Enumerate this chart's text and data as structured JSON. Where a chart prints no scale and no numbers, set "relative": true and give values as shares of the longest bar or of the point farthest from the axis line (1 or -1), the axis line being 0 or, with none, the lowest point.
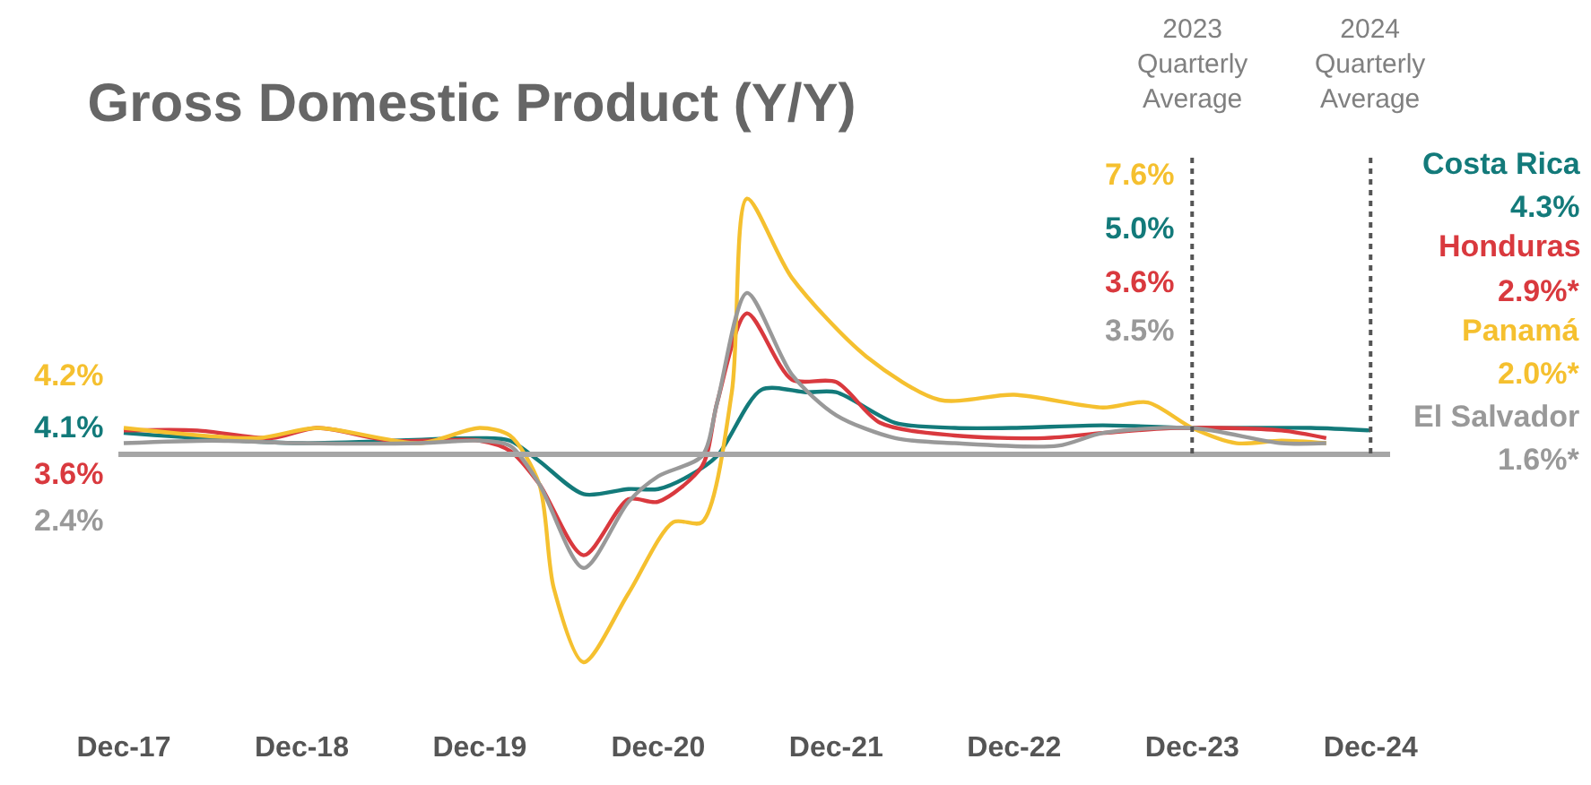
{
  "chart_data": {
    "type": "line",
    "title": "Gross Domestic Product (Y/Y)",
    "relative": true,
    "legend": false,
    "xlim": [
      "2017-11-20",
      "2025-01-10"
    ],
    "xticks": [
      {
        "value": "2017-12",
        "label": "Dec-17"
      },
      {
        "value": "2018-12",
        "label": "Dec-18"
      },
      {
        "value": "2019-12",
        "label": "Dec-19"
      },
      {
        "value": "2020-12",
        "label": "Dec-20"
      },
      {
        "value": "2021-12",
        "label": "Dec-21"
      },
      {
        "value": "2022-12",
        "label": "Dec-22"
      },
      {
        "value": "2023-12",
        "label": "Dec-23"
      },
      {
        "value": "2024-12",
        "label": "Dec-24"
      }
    ],
    "series": [
      {
        "name": "Costa Rica",
        "color": "#137a7a",
        "x": [
          "2017-12",
          "2018-12",
          "2019-12",
          "2020-02",
          "2020-04",
          "2020-07",
          "2020-10",
          "2020-12",
          "2021-02",
          "2021-04",
          "2021-07",
          "2021-10",
          "2021-12",
          "2022-04",
          "2022-08",
          "2022-12",
          "2023-06",
          "2023-12",
          "2024-08",
          "2024-12"
        ],
        "values": [
          0.08,
          0.04,
          0.06,
          0.05,
          -0.03,
          -0.16,
          -0.14,
          -0.14,
          -0.09,
          -0.01,
          0.25,
          0.24,
          0.24,
          0.12,
          0.1,
          0.1,
          0.11,
          0.1,
          0.1,
          0.09
        ]
      },
      {
        "name": "Honduras",
        "color": "#d9393e",
        "x": [
          "2017-12",
          "2018-05",
          "2018-10",
          "2019-01",
          "2019-06",
          "2019-12",
          "2020-02",
          "2020-04",
          "2020-07",
          "2020-10",
          "2020-12",
          "2021-03",
          "2021-04",
          "2021-06",
          "2021-09",
          "2021-12",
          "2022-03",
          "2022-08",
          "2023-02",
          "2023-06",
          "2023-11",
          "2024-06",
          "2024-09"
        ],
        "values": [
          0.09,
          0.09,
          0.06,
          0.1,
          0.05,
          0.05,
          0.01,
          -0.12,
          -0.4,
          -0.18,
          -0.19,
          -0.05,
          0.2,
          0.55,
          0.29,
          0.28,
          0.12,
          0.07,
          0.06,
          0.08,
          0.1,
          0.09,
          0.06
        ]
      },
      {
        "name": "Panamá",
        "color": "#f5c02f",
        "x": [
          "2017-12",
          "2018-09",
          "2019-01",
          "2019-08",
          "2019-12",
          "2020-02",
          "2020-04",
          "2020-05",
          "2020-07",
          "2020-10",
          "2021-01",
          "2021-03",
          "2021-05",
          "2021-06",
          "2021-09",
          "2022-02",
          "2022-07",
          "2022-12",
          "2023-06",
          "2023-09",
          "2023-12",
          "2024-03",
          "2024-06",
          "2024-09"
        ],
        "values": [
          0.1,
          0.06,
          0.1,
          0.04,
          0.1,
          0.07,
          -0.12,
          -0.53,
          -0.82,
          -0.55,
          -0.27,
          -0.27,
          0.24,
          1.0,
          0.69,
          0.38,
          0.21,
          0.23,
          0.18,
          0.2,
          0.1,
          0.04,
          0.05,
          0.04
        ]
      },
      {
        "name": "El Salvador",
        "color": "#999999",
        "x": [
          "2017-12",
          "2018-06",
          "2018-12",
          "2019-08",
          "2019-12",
          "2020-02",
          "2020-04",
          "2020-07",
          "2020-10",
          "2020-12",
          "2021-03",
          "2021-04",
          "2021-06",
          "2021-09",
          "2021-12",
          "2022-04",
          "2022-08",
          "2023-03",
          "2023-06",
          "2023-12",
          "2024-06",
          "2024-09"
        ],
        "values": [
          0.04,
          0.05,
          0.04,
          0.04,
          0.05,
          0.03,
          -0.12,
          -0.45,
          -0.19,
          -0.09,
          -0.01,
          0.2,
          0.63,
          0.31,
          0.15,
          0.06,
          0.04,
          0.03,
          0.08,
          0.1,
          0.04,
          0.04
        ]
      }
    ],
    "ref_lines": [
      {
        "axis": "x",
        "value": "2023-12",
        "label": "2023\nQuarterly\nAverage",
        "color": "#555555",
        "line_style": "dotted"
      },
      {
        "axis": "x",
        "value": "2024-12",
        "label": "2024\nQuarterly\nAverage",
        "color": "#555555",
        "line_style": "dotted"
      }
    ],
    "annotations": [
      "4.2%",
      "4.1%",
      "3.6%",
      "2.4%",
      "7.6%",
      "5.0%",
      "3.6%",
      "3.5%",
      "4.3%",
      "2.9%*",
      "2.0%*",
      "1.6%*"
    ]
  }
}
